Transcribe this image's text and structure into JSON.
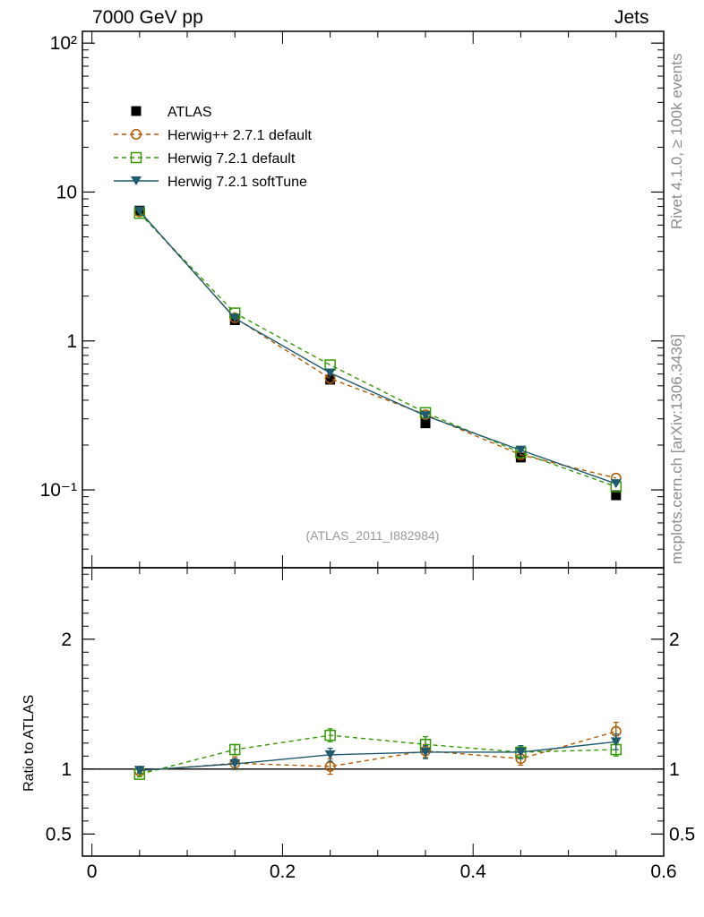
{
  "header": {
    "left": "7000 GeV pp",
    "right": "Jets"
  },
  "side": {
    "rivet": "Rivet 4.1.0, ≥ 100k events",
    "site": "mcplots.cern.ch [arXiv:1306.3436]"
  },
  "chart_data": [
    {
      "type": "line",
      "panel": "main",
      "yscale": "log",
      "analysis_label": "(ATLAS_2011_I882984)",
      "x": [
        0.05,
        0.15,
        0.25,
        0.35,
        0.45,
        0.55
      ],
      "xlim": [
        -0.01,
        0.6
      ],
      "ylim": [
        0.03,
        120
      ],
      "y_tick_labels": [
        "10⁻¹",
        "1",
        "10",
        "10²"
      ],
      "series": [
        {
          "name": "ATLAS",
          "style": "data",
          "color": "#000000",
          "marker": "square-filled",
          "values": [
            7.5,
            1.38,
            0.55,
            0.28,
            0.165,
            0.092
          ]
        },
        {
          "name": "Herwig++ 2.7.1 default",
          "style": "dashed",
          "color": "#b35a00",
          "marker": "circle-open",
          "values": [
            7.35,
            1.43,
            0.56,
            0.32,
            0.172,
            0.12
          ]
        },
        {
          "name": "Herwig 7.2.1 default",
          "style": "dashed",
          "color": "#339900",
          "marker": "square-open",
          "values": [
            7.2,
            1.54,
            0.69,
            0.33,
            0.178,
            0.105
          ]
        },
        {
          "name": "Herwig 7.2.1 softTune",
          "style": "solid",
          "color": "#1f5a6e",
          "marker": "triangle-down-filled",
          "values": [
            7.45,
            1.42,
            0.61,
            0.315,
            0.185,
            0.11
          ]
        }
      ]
    },
    {
      "type": "line",
      "panel": "ratio",
      "ylabel": "Ratio to ATLAS",
      "x": [
        0.05,
        0.15,
        0.25,
        0.35,
        0.45,
        0.55
      ],
      "xlim": [
        -0.01,
        0.6
      ],
      "ylim": [
        0.33,
        2.55
      ],
      "x_tick_labels": [
        "0",
        "0.2",
        "0.4",
        "0.6"
      ],
      "y_tick_labels": [
        "0.5",
        "1",
        "2"
      ],
      "series": [
        {
          "name": "Herwig++ 2.7.1 default",
          "style": "dashed",
          "color": "#b35a00",
          "marker": "circle-open",
          "values": [
            0.985,
            1.045,
            1.02,
            1.14,
            1.08,
            1.29
          ],
          "errors": [
            0.02,
            0.05,
            0.06,
            0.05,
            0.05,
            0.07
          ]
        },
        {
          "name": "Herwig 7.2.1 default",
          "style": "dashed",
          "color": "#339900",
          "marker": "square-open",
          "values": [
            0.96,
            1.15,
            1.26,
            1.19,
            1.13,
            1.15
          ],
          "errors": [
            0.02,
            0.04,
            0.05,
            0.06,
            0.05,
            0.05
          ]
        },
        {
          "name": "Herwig 7.2.1 softTune",
          "style": "solid",
          "color": "#1f5a6e",
          "marker": "triangle-down-filled",
          "values": [
            0.99,
            1.04,
            1.11,
            1.13,
            1.13,
            1.21
          ],
          "errors": [
            0.02,
            0.04,
            0.05,
            0.05,
            0.05,
            0.06
          ]
        }
      ]
    }
  ]
}
